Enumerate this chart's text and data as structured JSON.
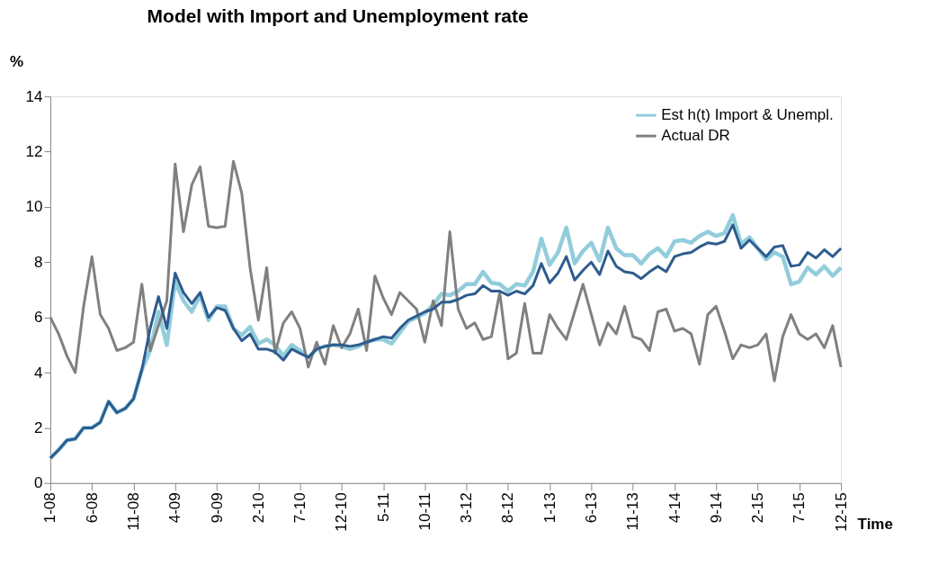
{
  "chart_data": {
    "type": "line",
    "title": "Model with Import and Unemployment rate",
    "xlabel": "Time",
    "ylabel": "%",
    "categories": [
      "1-08",
      null,
      null,
      null,
      null,
      "6-08",
      null,
      null,
      null,
      null,
      "11-08",
      null,
      null,
      null,
      null,
      "4-09",
      null,
      null,
      null,
      null,
      "9-09",
      null,
      null,
      null,
      null,
      "2-10",
      null,
      null,
      null,
      null,
      "7-10",
      null,
      null,
      null,
      null,
      "12-10",
      null,
      null,
      null,
      null,
      "5-11",
      null,
      null,
      null,
      null,
      "10-11",
      null,
      null,
      null,
      null,
      "3-12",
      null,
      null,
      null,
      null,
      "8-12",
      null,
      null,
      null,
      null,
      "1-13",
      null,
      null,
      null,
      null,
      "6-13",
      null,
      null,
      null,
      null,
      "11-13",
      null,
      null,
      null,
      null,
      "4-14",
      null,
      null,
      null,
      null,
      "9-14",
      null,
      null,
      null,
      null,
      "2-15",
      null,
      null,
      null,
      null,
      "7-15",
      null,
      null,
      null,
      null,
      "12-15"
    ],
    "ylim": [
      0,
      14
    ],
    "yticks": [
      0,
      2,
      4,
      6,
      8,
      10,
      12,
      14
    ],
    "grid": false,
    "legend": "top right",
    "series": [
      {
        "name": "Est h(t) Import & Unempl.",
        "color": "#92cddc",
        "values": [
          0.9,
          1.2,
          1.55,
          1.6,
          2.0,
          2.0,
          2.2,
          2.95,
          2.55,
          2.7,
          3.05,
          4.1,
          4.8,
          6.2,
          5.0,
          7.3,
          6.6,
          6.2,
          6.8,
          5.9,
          6.4,
          6.4,
          5.6,
          5.35,
          5.65,
          5.05,
          5.2,
          5.0,
          4.6,
          5.0,
          4.8,
          4.55,
          4.85,
          4.95,
          5.0,
          4.95,
          4.85,
          4.95,
          5.1,
          5.2,
          5.2,
          5.05,
          5.45,
          5.85,
          6.0,
          6.15,
          6.45,
          6.85,
          6.8,
          6.95,
          7.2,
          7.2,
          7.65,
          7.25,
          7.2,
          6.95,
          7.2,
          7.15,
          7.65,
          8.85,
          7.9,
          8.35,
          9.25,
          7.95,
          8.4,
          8.7,
          8.05,
          9.25,
          8.5,
          8.25,
          8.25,
          7.95,
          8.3,
          8.5,
          8.2,
          8.75,
          8.8,
          8.7,
          8.95,
          9.1,
          8.95,
          9.05,
          9.7,
          8.65,
          8.9,
          8.5,
          8.1,
          8.35,
          8.2,
          7.2,
          7.3,
          7.8,
          7.55,
          7.85,
          7.5,
          7.8
        ]
      },
      {
        "name": "Actual DR",
        "color": "#808080",
        "values": [
          6.0,
          5.4,
          4.6,
          4.0,
          6.4,
          8.2,
          6.1,
          5.6,
          4.8,
          4.9,
          5.1,
          7.2,
          4.8,
          5.7,
          6.6,
          11.55,
          9.1,
          10.8,
          11.45,
          9.3,
          9.25,
          9.3,
          11.65,
          10.5,
          7.8,
          5.9,
          7.8,
          4.7,
          5.8,
          6.2,
          5.6,
          4.2,
          5.1,
          4.3,
          5.7,
          4.9,
          5.4,
          6.3,
          4.8,
          7.5,
          6.7,
          6.1,
          6.9,
          6.6,
          6.3,
          5.1,
          6.6,
          5.7,
          9.1,
          6.3,
          5.6,
          5.8,
          5.2,
          5.3,
          6.9,
          4.5,
          4.7,
          6.5,
          4.7,
          4.7,
          6.1,
          5.6,
          5.2,
          6.2,
          7.2,
          6.1,
          5.0,
          5.8,
          5.4,
          6.4,
          5.3,
          5.2,
          4.8,
          6.2,
          6.3,
          5.5,
          5.6,
          5.4,
          4.3,
          6.1,
          6.4,
          5.5,
          4.5,
          5.0,
          4.9,
          5.0,
          5.4,
          3.7,
          5.3,
          6.1,
          5.4,
          5.2,
          5.4,
          4.9,
          5.7,
          4.2
        ]
      },
      {
        "color": "#2e5c8e",
        "values": [
          0.9,
          1.2,
          1.55,
          1.6,
          2.0,
          2.0,
          2.2,
          2.95,
          2.55,
          2.7,
          3.05,
          4.1,
          5.6,
          6.75,
          5.6,
          7.6,
          6.9,
          6.5,
          6.9,
          6.0,
          6.35,
          6.25,
          5.6,
          5.15,
          5.4,
          4.85,
          4.85,
          4.75,
          4.45,
          4.85,
          4.7,
          4.55,
          4.85,
          4.95,
          5.0,
          5.0,
          4.95,
          5.0,
          5.1,
          5.2,
          5.3,
          5.25,
          5.6,
          5.9,
          6.05,
          6.2,
          6.3,
          6.55,
          6.55,
          6.65,
          6.8,
          6.85,
          7.15,
          6.95,
          6.95,
          6.8,
          6.95,
          6.85,
          7.15,
          7.95,
          7.25,
          7.6,
          8.2,
          7.35,
          7.7,
          8.0,
          7.55,
          8.4,
          7.85,
          7.65,
          7.6,
          7.4,
          7.65,
          7.85,
          7.65,
          8.2,
          8.3,
          8.35,
          8.55,
          8.7,
          8.65,
          8.75,
          9.35,
          8.5,
          8.8,
          8.5,
          8.2,
          8.55,
          8.6,
          7.85,
          7.9,
          8.35,
          8.15,
          8.45,
          8.2,
          8.5
        ]
      }
    ]
  }
}
